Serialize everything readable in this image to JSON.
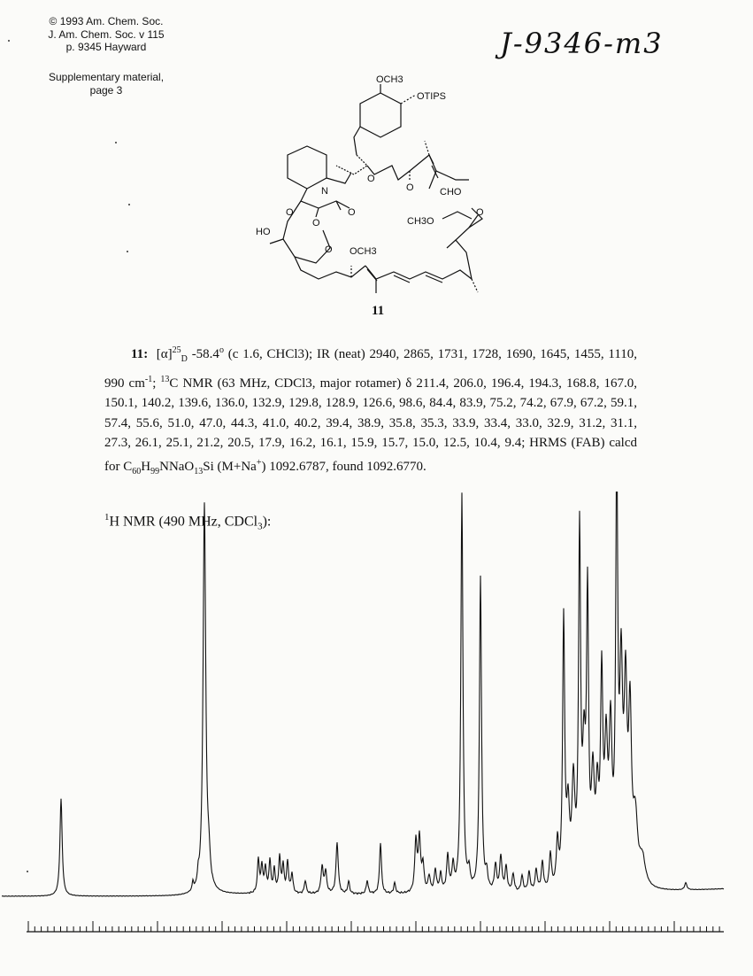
{
  "header": {
    "citation_lines": [
      "© 1993 Am. Chem. Soc.",
      "J. Am. Chem. Soc. v 115",
      "p. 9345 Hayward"
    ],
    "supplementary_lines": [
      "Supplementary material,",
      "page 3"
    ],
    "handwritten_note": "J-9346-m3"
  },
  "structure": {
    "compound_number": "11",
    "labels": {
      "methoxy_top": "OCH3",
      "otips": "OTIPS",
      "cho": "CHO",
      "ketone_o1": "O",
      "ketone_o2": "O",
      "ester_o": "O",
      "amide_o": "O",
      "keto_o": "O",
      "nitrogen": "N",
      "hydroxyl": "HO",
      "ring_o": "O",
      "methoxy_mid": "OCH3",
      "methoxymethyl": "CH3O",
      "ketone_o3": "O"
    }
  },
  "characterization": {
    "compound": "11",
    "rotation_text": "[α]",
    "rotation_sup": "25",
    "rotation_sub": "D",
    "rotation_value": " -58.4",
    "rotation_deg": "o",
    "rotation_cond": " (c 1.6, CHCl3); IR (neat) 2940, 2865, 1731, 1728, 1690, 1645, 1455, 1110, 990 cm",
    "ir_sup": "-1",
    "c13_sep": "; ",
    "c13_sup": "13",
    "c13_text": "C NMR (63 MHz, CDCl3, major rotamer) δ 211.4, 206.0, 196.4, 194.3, 168.8, 167.0, 150.1, 140.2, 139.6, 136.0, 132.9, 129.8, 128.9, 126.6, 98.6, 84.4, 83.9, 75.2, 74.2, 67.9, 67.2, 59.1, 57.4, 55.6, 51.0, 47.0, 44.3, 41.0, 40.2, 39.4, 38.9, 35.8, 35.3, 33.9, 33.4, 33.0, 32.9, 31.2, 31.1, 27.3, 26.1, 25.1, 21.2, 20.5, 17.9, 16.2, 16.1, 15.9, 15.7, 15.0, 12.5, 10.4, 9.4; HRMS (FAB) calcd for ",
    "formula_c": "C",
    "formula_c_sub": "60",
    "formula_h": "H",
    "formula_h_sub": "99",
    "formula_nnao": "NNaO",
    "formula_o_sub": "13",
    "formula_tail": "Si (M+Na",
    "formula_plus": "+",
    "formula_end": ") 1092.6787, found 1092.6770."
  },
  "nmr": {
    "label_sup": "1",
    "label_text": "H NMR (490 MHz, CDCl",
    "label_sub": "3",
    "label_end": "):"
  }
}
